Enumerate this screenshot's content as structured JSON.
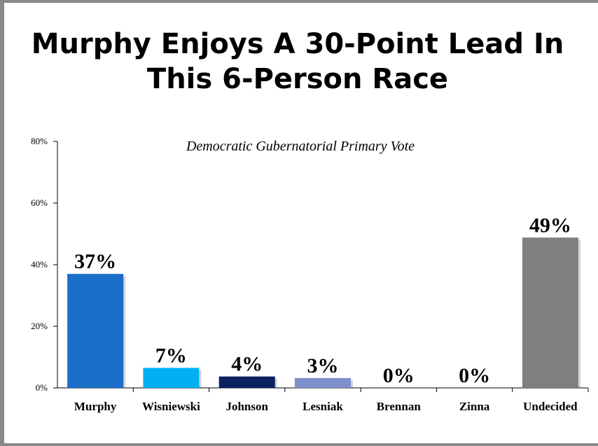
{
  "slide": {
    "title_line1": "Murphy Enjoys A 30-Point Lead In",
    "title_line2": "This 6-Person Race"
  },
  "chart_data": {
    "type": "bar",
    "title": "Democratic  Gubernatorial Primary Vote",
    "categories": [
      "Murphy",
      "Wisniewski",
      "Johnson",
      "Lesniak",
      "Brennan",
      "Zinna",
      "Undecided"
    ],
    "values": [
      37,
      7,
      4,
      3,
      0,
      0,
      49
    ],
    "data_labels": [
      "37%",
      "7%",
      "4%",
      "3%",
      "0%",
      "0%",
      "49%"
    ],
    "plotted_values": [
      37,
      6.5,
      3.7,
      3.2,
      0,
      0,
      48.8
    ],
    "colors": [
      "#1a6fc8",
      "#00b0f0",
      "#0d2060",
      "#7f8fcc",
      "#ffffff",
      "#ffffff",
      "#7f7f7f"
    ],
    "ylim": [
      0,
      80
    ],
    "yticks": [
      0,
      20,
      40,
      60,
      80
    ],
    "ytick_labels": [
      "0%",
      "20%",
      "40%",
      "60%",
      "80%"
    ],
    "grid": false,
    "legend": "none",
    "xlabel": "",
    "ylabel": ""
  }
}
